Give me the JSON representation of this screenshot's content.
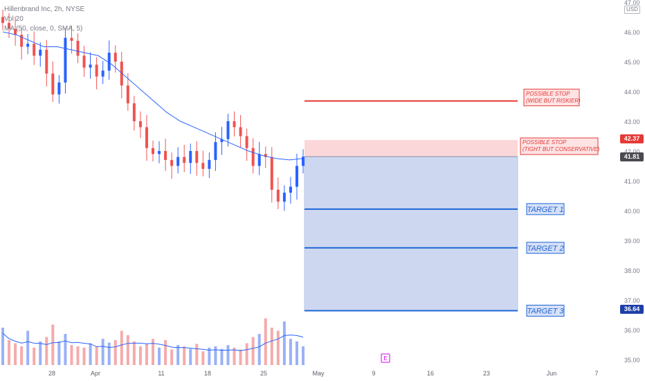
{
  "header": {
    "symbol_line": "Hillenbrand Inc, 2h, NYSE",
    "volume_line": "Vol 20",
    "ma_line": "MA (50, close, 0, SMA, 5)"
  },
  "price_scale": {
    "currency": "USD",
    "current_price": "41.81",
    "stop_price": "42.37",
    "target3_price": "36.64"
  },
  "colors": {
    "up": "#2962ff",
    "down": "#ef5350",
    "ma": "#2962ff",
    "stop_line": "#e53935",
    "target_line": "#1e66d6",
    "reward_zone": "#cdd8f0",
    "risk_zone": "#fcd7d9",
    "text_muted": "#787b86"
  },
  "chart_data": {
    "type": "candlestick",
    "symbol": "Hillenbrand Inc",
    "interval": "2h",
    "exchange": "NYSE",
    "y_range": [
      34.8,
      47.2
    ],
    "y_ticks": [
      "47.00",
      "46.00",
      "45.00",
      "44.00",
      "43.00",
      "42.00",
      "41.00",
      "40.00",
      "39.00",
      "38.00",
      "37.00",
      "36.00",
      "35.00"
    ],
    "x_ticks": [
      "28",
      "Apr",
      "11",
      "18",
      "25",
      "May",
      "9",
      "16",
      "23",
      "Jun",
      "7"
    ],
    "close_series_approx": [
      46.3,
      46.1,
      45.9,
      45.5,
      45.6,
      45.2,
      45.4,
      44.6,
      43.9,
      44.3,
      45.8,
      45.7,
      45.2,
      44.8,
      44.9,
      44.5,
      44.7,
      45.3,
      45.0,
      44.2,
      43.6,
      43.0,
      42.8,
      42.1,
      41.9,
      42.0,
      41.7,
      41.5,
      41.8,
      41.6,
      42.0,
      41.6,
      41.4,
      41.7,
      42.3,
      42.4,
      43.0,
      42.8,
      42.5,
      42.1,
      41.5,
      41.9,
      41.8,
      40.7,
      40.3,
      40.6,
      40.8,
      41.5,
      41.81
    ],
    "ma_series_approx": [
      46.0,
      45.9,
      45.7,
      45.5,
      45.5,
      45.4,
      45.3,
      45.2,
      44.9,
      44.5,
      44.1,
      43.7,
      43.3,
      43.0,
      42.8,
      42.6,
      42.4,
      42.2,
      42.0,
      41.85,
      41.75,
      41.7,
      41.75
    ],
    "price_levels": [
      {
        "label": "POSSIBLE STOP\n(WIDE BUT RISKIER)",
        "value": 43.68,
        "style": "stop"
      },
      {
        "label": "POSSIBLE STOP\n(TIGHT BUT CONSERVATIVE)",
        "value": 42.37,
        "style": "stop-zone"
      },
      {
        "label": "TARGET 1",
        "value": 40.05,
        "style": "target"
      },
      {
        "label": "TARGET 2",
        "value": 38.75,
        "style": "target"
      },
      {
        "label": "TARGET 3",
        "value": 36.64,
        "style": "target"
      }
    ],
    "entry": 41.81,
    "volume_note": "volume histogram below price with moving average line",
    "earnings_marker": "E"
  }
}
